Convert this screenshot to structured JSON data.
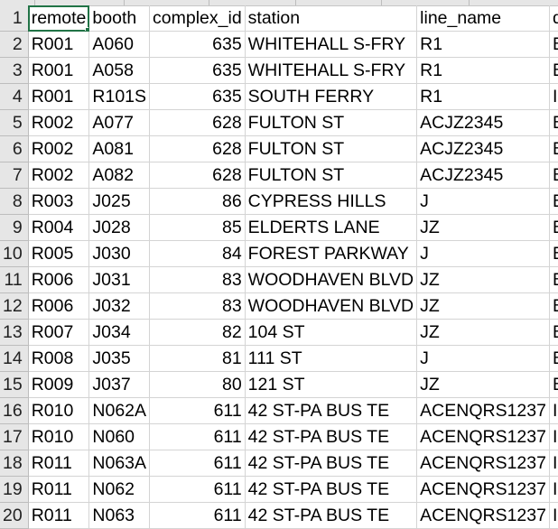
{
  "sheet": {
    "headers": [
      "remote",
      "booth",
      "complex_id",
      "station",
      "line_name",
      "division"
    ],
    "rows": [
      {
        "num": "2",
        "cells": [
          "R001",
          "A060",
          "635",
          "WHITEHALL S-FRY",
          "R1",
          "BMT"
        ]
      },
      {
        "num": "3",
        "cells": [
          "R001",
          "A058",
          "635",
          "WHITEHALL S-FRY",
          "R1",
          "BMT"
        ]
      },
      {
        "num": "4",
        "cells": [
          "R001",
          "R101S",
          "635",
          "SOUTH FERRY",
          "R1",
          "IRT"
        ]
      },
      {
        "num": "5",
        "cells": [
          "R002",
          "A077",
          "628",
          "FULTON ST",
          "ACJZ2345",
          "BMT"
        ]
      },
      {
        "num": "6",
        "cells": [
          "R002",
          "A081",
          "628",
          "FULTON ST",
          "ACJZ2345",
          "BMT"
        ]
      },
      {
        "num": "7",
        "cells": [
          "R002",
          "A082",
          "628",
          "FULTON ST",
          "ACJZ2345",
          "BMT"
        ]
      },
      {
        "num": "8",
        "cells": [
          "R003",
          "J025",
          "86",
          "CYPRESS HILLS",
          "J",
          "BMT"
        ]
      },
      {
        "num": "9",
        "cells": [
          "R004",
          "J028",
          "85",
          "ELDERTS LANE",
          "JZ",
          "BMT"
        ]
      },
      {
        "num": "10",
        "cells": [
          "R005",
          "J030",
          "84",
          "FOREST PARKWAY",
          "J",
          "BMT"
        ]
      },
      {
        "num": "11",
        "cells": [
          "R006",
          "J031",
          "83",
          "WOODHAVEN BLVD",
          "JZ",
          "BMT"
        ]
      },
      {
        "num": "12",
        "cells": [
          "R006",
          "J032",
          "83",
          "WOODHAVEN BLVD",
          "JZ",
          "BMT"
        ]
      },
      {
        "num": "13",
        "cells": [
          "R007",
          "J034",
          "82",
          "104 ST",
          "JZ",
          "BMT"
        ]
      },
      {
        "num": "14",
        "cells": [
          "R008",
          "J035",
          "81",
          "111 ST",
          "J",
          "BMT"
        ]
      },
      {
        "num": "15",
        "cells": [
          "R009",
          "J037",
          "80",
          "121 ST",
          "JZ",
          "BMT"
        ]
      },
      {
        "num": "16",
        "cells": [
          "R010",
          "N062A",
          "611",
          "42 ST-PA BUS TE",
          "ACENQRS1237",
          "IND"
        ]
      },
      {
        "num": "17",
        "cells": [
          "R010",
          "N060",
          "611",
          "42 ST-PA BUS TE",
          "ACENQRS1237",
          "IND"
        ]
      },
      {
        "num": "18",
        "cells": [
          "R011",
          "N063A",
          "611",
          "42 ST-PA BUS TE",
          "ACENQRS1237",
          "IND"
        ]
      },
      {
        "num": "19",
        "cells": [
          "R011",
          "N062",
          "611",
          "42 ST-PA BUS TE",
          "ACENQRS1237",
          "IND"
        ]
      },
      {
        "num": "20",
        "cells": [
          "R011",
          "N063",
          "611",
          "42 ST-PA BUS TE",
          "ACENQRS1237",
          "IND"
        ]
      }
    ]
  }
}
